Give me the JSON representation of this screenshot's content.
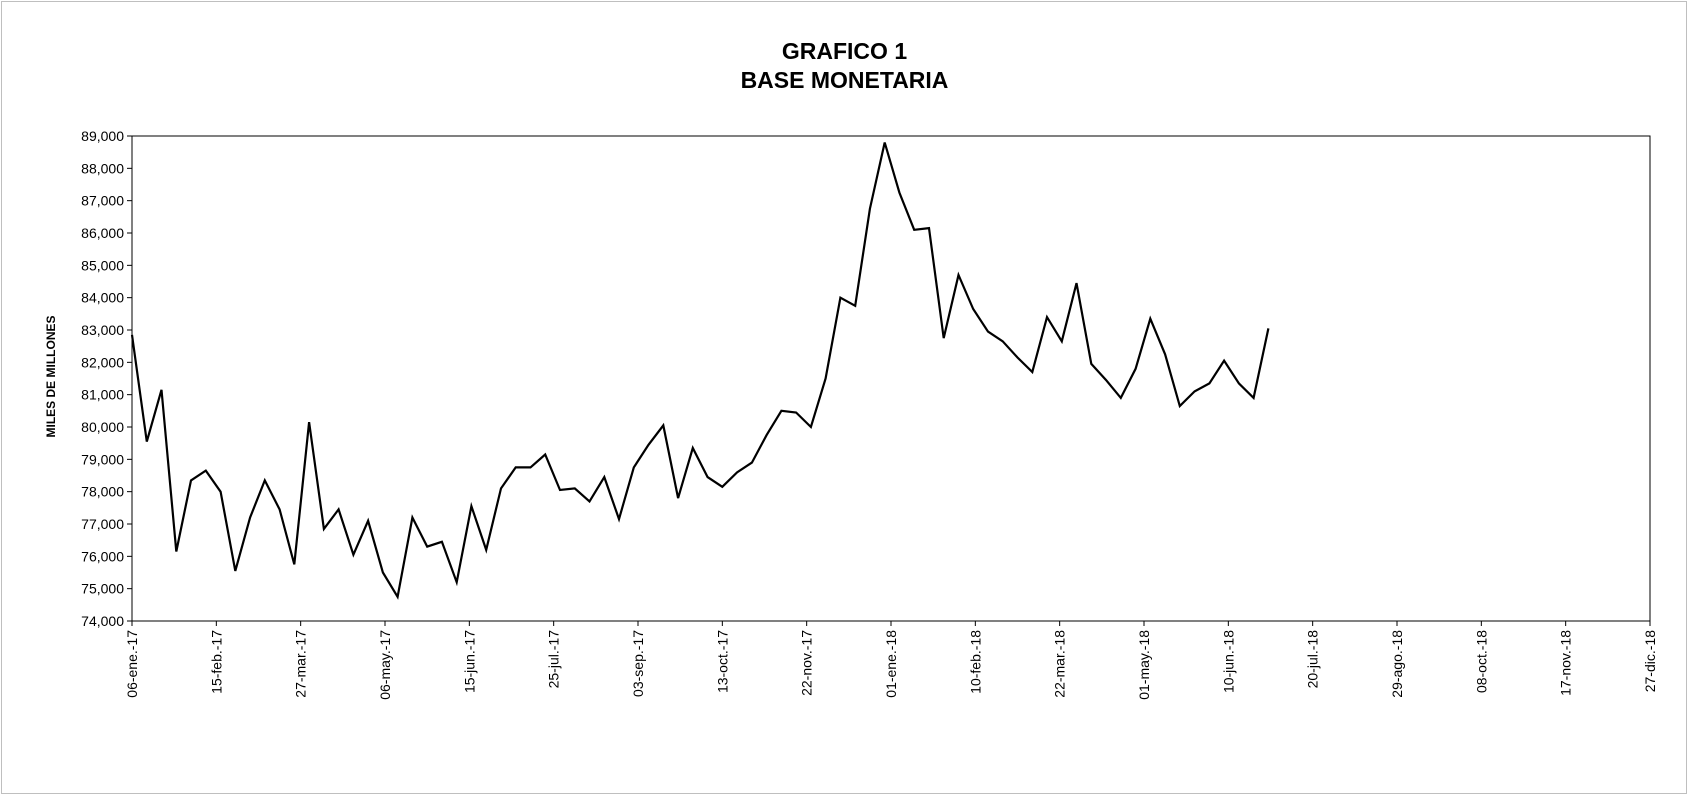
{
  "chart_data": {
    "type": "line",
    "title": "GRAFICO 1",
    "subtitle": "BASE MONETARIA",
    "xlabel": "",
    "ylabel": "MILES DE  MILLONES",
    "ylim": [
      74000,
      89000
    ],
    "yticks": [
      74000,
      75000,
      76000,
      77000,
      78000,
      79000,
      80000,
      81000,
      82000,
      83000,
      84000,
      85000,
      86000,
      87000,
      88000,
      89000
    ],
    "ytick_labels": [
      "74,000",
      "75,000",
      "76,000",
      "77,000",
      "78,000",
      "79,000",
      "80,000",
      "81,000",
      "82,000",
      "83,000",
      "84,000",
      "85,000",
      "86,000",
      "87,000",
      "88,000",
      "89,000"
    ],
    "xlim": [
      "2017-01-06",
      "2018-12-27"
    ],
    "xticks": [
      "2017-01-06",
      "2017-02-15",
      "2017-03-27",
      "2017-05-06",
      "2017-06-15",
      "2017-07-25",
      "2017-09-03",
      "2017-10-13",
      "2017-11-22",
      "2018-01-01",
      "2018-02-10",
      "2018-03-22",
      "2018-05-01",
      "2018-06-10",
      "2018-07-20",
      "2018-08-29",
      "2018-10-08",
      "2018-11-17",
      "2018-12-27"
    ],
    "xtick_labels": [
      "06-ene.-17",
      "15-feb.-17",
      "27-mar.-17",
      "06-may.-17",
      "15-jun.-17",
      "25-jul.-17",
      "03-sep.-17",
      "13-oct.-17",
      "22-nov.-17",
      "01-ene.-18",
      "10-feb.-18",
      "22-mar.-18",
      "01-may.-18",
      "10-jun.-18",
      "20-jul.-18",
      "29-ago.-18",
      "08-oct.-18",
      "17-nov.-18",
      "27-dic.-18"
    ],
    "grid": false,
    "line_color": "#000000",
    "series": [
      {
        "x": [
          "2017-01-06",
          "2017-01-13",
          "2017-01-20",
          "2017-01-27",
          "2017-02-03",
          "2017-02-10",
          "2017-02-17",
          "2017-02-24",
          "2017-03-03",
          "2017-03-10",
          "2017-03-17",
          "2017-03-24",
          "2017-03-31",
          "2017-04-07",
          "2017-04-14",
          "2017-04-21",
          "2017-04-28",
          "2017-05-05",
          "2017-05-12",
          "2017-05-19",
          "2017-05-26",
          "2017-06-02",
          "2017-06-09",
          "2017-06-16",
          "2017-06-23",
          "2017-06-30",
          "2017-07-07",
          "2017-07-14",
          "2017-07-21",
          "2017-07-28",
          "2017-08-04",
          "2017-08-11",
          "2017-08-18",
          "2017-08-25",
          "2017-09-01",
          "2017-09-08",
          "2017-09-15",
          "2017-09-22",
          "2017-09-29",
          "2017-10-06",
          "2017-10-13",
          "2017-10-20",
          "2017-10-27",
          "2017-11-03",
          "2017-11-10",
          "2017-11-17",
          "2017-11-24",
          "2017-12-01",
          "2017-12-08",
          "2017-12-15",
          "2017-12-22",
          "2017-12-29",
          "2018-01-05",
          "2018-01-12",
          "2018-01-19",
          "2018-01-26",
          "2018-02-02",
          "2018-02-09",
          "2018-02-16",
          "2018-02-23",
          "2018-03-02",
          "2018-03-09",
          "2018-03-16",
          "2018-03-23",
          "2018-03-30",
          "2018-04-06",
          "2018-04-13",
          "2018-04-20",
          "2018-04-27",
          "2018-05-04",
          "2018-05-11",
          "2018-05-18",
          "2018-05-25",
          "2018-06-01",
          "2018-06-08",
          "2018-06-15",
          "2018-06-22",
          "2018-06-29"
        ],
        "values": [
          82850,
          79550,
          81150,
          76150,
          78350,
          78650,
          78000,
          75550,
          77200,
          78350,
          77450,
          75750,
          80150,
          76850,
          77450,
          76050,
          77100,
          75500,
          74750,
          77200,
          76300,
          76450,
          75200,
          77550,
          76200,
          78100,
          78750,
          78750,
          79150,
          78050,
          78100,
          77700,
          78450,
          77150,
          78750,
          79450,
          80050,
          77800,
          79350,
          78450,
          78150,
          78600,
          78900,
          79750,
          80500,
          80450,
          80000,
          81500,
          84000,
          83750,
          86750,
          88800,
          87250,
          86100,
          86150,
          82750,
          84700,
          83650,
          82950,
          82650,
          82150,
          81700,
          83400,
          82650,
          84450,
          81950,
          81450,
          80900,
          81800,
          83350,
          82250,
          80650,
          81100,
          81350,
          82050,
          81350,
          80900,
          83050
        ]
      }
    ]
  }
}
